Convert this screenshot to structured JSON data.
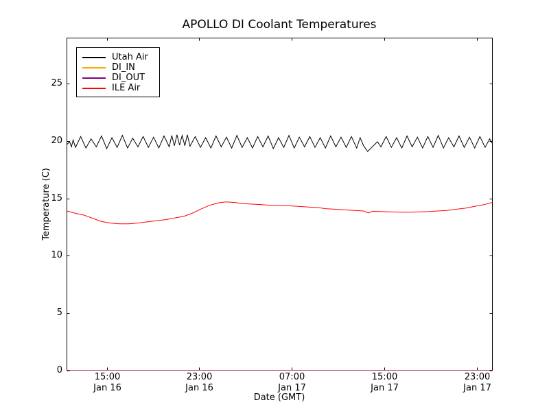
{
  "chart_data": {
    "type": "line",
    "title": "APOLLO DI Coolant Temperatures",
    "xlabel": "Date (GMT)",
    "ylabel": "Temperature (C)",
    "grid": false,
    "legend_position": "upper left",
    "xlim_hours": [
      11.56,
      48.33
    ],
    "ylim": [
      0,
      29
    ],
    "y_ticks": [
      0,
      5,
      10,
      15,
      20,
      25
    ],
    "x_ticks": [
      {
        "t": 15,
        "time": "15:00",
        "date": "Jan 16"
      },
      {
        "t": 23,
        "time": "23:00",
        "date": "Jan 16"
      },
      {
        "t": 31,
        "time": "07:00",
        "date": "Jan 17"
      },
      {
        "t": 39,
        "time": "15:00",
        "date": "Jan 17"
      },
      {
        "t": 47,
        "time": "23:00",
        "date": "Jan 17"
      }
    ],
    "series": [
      {
        "name": "Utah Air",
        "color": "#000000",
        "opacity": 1,
        "points": [
          [
            11.56,
            19.7
          ],
          [
            11.8,
            19.95
          ],
          [
            11.95,
            19.5
          ],
          [
            12.1,
            20.1
          ],
          [
            12.3,
            19.45
          ],
          [
            12.75,
            20.4
          ],
          [
            13.2,
            19.4
          ],
          [
            13.65,
            20.2
          ],
          [
            14.1,
            19.5
          ],
          [
            14.55,
            20.45
          ],
          [
            15.0,
            19.35
          ],
          [
            15.45,
            20.3
          ],
          [
            15.9,
            19.45
          ],
          [
            16.35,
            20.5
          ],
          [
            16.8,
            19.4
          ],
          [
            17.25,
            20.25
          ],
          [
            17.7,
            19.5
          ],
          [
            18.15,
            20.4
          ],
          [
            18.6,
            19.45
          ],
          [
            19.05,
            20.35
          ],
          [
            19.5,
            19.4
          ],
          [
            19.95,
            20.45
          ],
          [
            20.4,
            19.5
          ],
          [
            20.62,
            20.5
          ],
          [
            20.85,
            19.6
          ],
          [
            21.07,
            20.55
          ],
          [
            21.3,
            19.65
          ],
          [
            21.52,
            20.5
          ],
          [
            21.75,
            19.6
          ],
          [
            21.97,
            20.55
          ],
          [
            22.2,
            19.55
          ],
          [
            22.65,
            20.4
          ],
          [
            23.1,
            19.45
          ],
          [
            23.55,
            20.3
          ],
          [
            24.0,
            19.4
          ],
          [
            24.45,
            20.45
          ],
          [
            24.9,
            19.5
          ],
          [
            25.35,
            20.35
          ],
          [
            25.8,
            19.4
          ],
          [
            26.25,
            20.5
          ],
          [
            26.7,
            19.45
          ],
          [
            27.15,
            20.3
          ],
          [
            27.6,
            19.4
          ],
          [
            28.05,
            20.4
          ],
          [
            28.5,
            19.5
          ],
          [
            28.95,
            20.45
          ],
          [
            29.4,
            19.35
          ],
          [
            29.85,
            20.3
          ],
          [
            30.3,
            19.45
          ],
          [
            30.75,
            20.5
          ],
          [
            31.2,
            19.4
          ],
          [
            31.65,
            20.35
          ],
          [
            32.1,
            19.5
          ],
          [
            32.55,
            20.4
          ],
          [
            33.0,
            19.45
          ],
          [
            33.45,
            20.3
          ],
          [
            33.9,
            19.4
          ],
          [
            34.35,
            20.45
          ],
          [
            34.8,
            19.5
          ],
          [
            35.25,
            20.35
          ],
          [
            35.7,
            19.45
          ],
          [
            36.15,
            20.4
          ],
          [
            36.6,
            19.4
          ],
          [
            36.9,
            20.3
          ],
          [
            37.2,
            19.6
          ],
          [
            37.55,
            19.1
          ],
          [
            38.4,
            19.95
          ],
          [
            38.7,
            19.5
          ],
          [
            39.15,
            20.4
          ],
          [
            39.6,
            19.45
          ],
          [
            40.05,
            20.3
          ],
          [
            40.5,
            19.4
          ],
          [
            40.95,
            20.45
          ],
          [
            41.4,
            19.5
          ],
          [
            41.85,
            20.35
          ],
          [
            42.3,
            19.4
          ],
          [
            42.75,
            20.4
          ],
          [
            43.2,
            19.45
          ],
          [
            43.65,
            20.5
          ],
          [
            44.1,
            19.4
          ],
          [
            44.55,
            20.3
          ],
          [
            45.0,
            19.5
          ],
          [
            45.45,
            20.45
          ],
          [
            45.9,
            19.45
          ],
          [
            46.35,
            20.35
          ],
          [
            46.8,
            19.4
          ],
          [
            47.25,
            20.4
          ],
          [
            47.7,
            19.45
          ],
          [
            48.1,
            20.2
          ],
          [
            48.33,
            19.8
          ]
        ]
      },
      {
        "name": "DI_IN",
        "color": "#ffa500",
        "opacity": 0.9,
        "points": [
          [
            11.56,
            0
          ],
          [
            48.33,
            0
          ]
        ]
      },
      {
        "name": "DI_OUT",
        "color": "#800080",
        "opacity": 0.65,
        "points": [
          [
            11.56,
            0
          ],
          [
            48.33,
            0
          ]
        ]
      },
      {
        "name": "ILE Air",
        "color": "#ff0000",
        "opacity": 1,
        "points": [
          [
            11.56,
            13.9
          ],
          [
            12.3,
            13.7
          ],
          [
            13.0,
            13.55
          ],
          [
            13.7,
            13.3
          ],
          [
            14.5,
            13.0
          ],
          [
            15.3,
            12.85
          ],
          [
            16.1,
            12.78
          ],
          [
            16.9,
            12.78
          ],
          [
            17.7,
            12.85
          ],
          [
            18.5,
            12.95
          ],
          [
            19.3,
            13.05
          ],
          [
            20.1,
            13.15
          ],
          [
            20.9,
            13.3
          ],
          [
            21.7,
            13.45
          ],
          [
            22.5,
            13.75
          ],
          [
            23.2,
            14.1
          ],
          [
            23.9,
            14.4
          ],
          [
            24.6,
            14.6
          ],
          [
            25.3,
            14.7
          ],
          [
            26.0,
            14.65
          ],
          [
            26.8,
            14.55
          ],
          [
            27.6,
            14.5
          ],
          [
            28.4,
            14.45
          ],
          [
            29.2,
            14.4
          ],
          [
            30.0,
            14.35
          ],
          [
            30.8,
            14.35
          ],
          [
            31.6,
            14.3
          ],
          [
            32.4,
            14.25
          ],
          [
            33.2,
            14.2
          ],
          [
            34.0,
            14.1
          ],
          [
            34.8,
            14.05
          ],
          [
            35.6,
            14.0
          ],
          [
            36.4,
            13.95
          ],
          [
            37.2,
            13.9
          ],
          [
            37.6,
            13.72
          ],
          [
            38.0,
            13.88
          ],
          [
            38.8,
            13.85
          ],
          [
            39.6,
            13.82
          ],
          [
            40.4,
            13.8
          ],
          [
            41.2,
            13.8
          ],
          [
            42.0,
            13.82
          ],
          [
            42.8,
            13.85
          ],
          [
            43.6,
            13.9
          ],
          [
            44.4,
            13.95
          ],
          [
            45.2,
            14.05
          ],
          [
            46.0,
            14.15
          ],
          [
            46.8,
            14.3
          ],
          [
            47.6,
            14.45
          ],
          [
            48.33,
            14.65
          ]
        ]
      }
    ]
  }
}
